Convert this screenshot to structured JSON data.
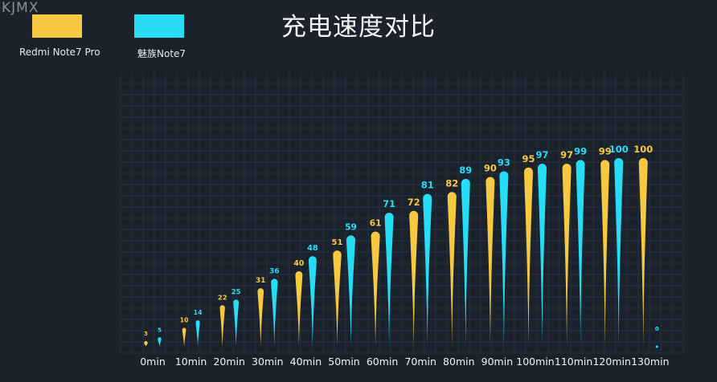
{
  "watermark": "KJMX",
  "chart_data": {
    "type": "bar",
    "title": "充电速度对比",
    "xlabel": "",
    "ylabel": "",
    "ylim": [
      0,
      100
    ],
    "legend_position": "top-left",
    "grid": true,
    "categories": [
      "0min",
      "10min",
      "20min",
      "30min",
      "40min",
      "50min",
      "60min",
      "70min",
      "80min",
      "90min",
      "100min",
      "110min",
      "120min",
      "130min"
    ],
    "series": [
      {
        "name": "Redmi Note7 Pro",
        "color": "#f7c940",
        "values": [
          3,
          10,
          22,
          31,
          40,
          51,
          61,
          72,
          82,
          90,
          95,
          97,
          99,
          100
        ]
      },
      {
        "name": "魅族Note7",
        "color": "#27ddf6",
        "values": [
          5,
          14,
          25,
          36,
          48,
          59,
          71,
          81,
          89,
          93,
          97,
          99,
          100,
          0
        ]
      }
    ]
  }
}
